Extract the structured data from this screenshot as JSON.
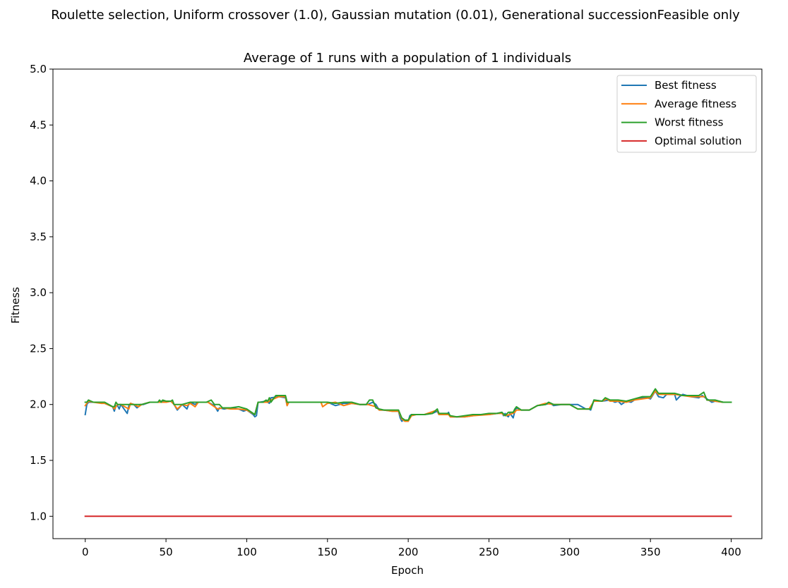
{
  "figure": {
    "suptitle": "Roulette selection, Uniform crossover (1.0), Gaussian mutation (0.01), Generational successionFeasible only",
    "title": "Average of 1 runs with a population of 1 individuals"
  },
  "chart_data": {
    "type": "line",
    "title": "Average of 1 runs with a population of 1 individuals",
    "xlabel": "Epoch",
    "ylabel": "Fitness",
    "xlim": [
      -20,
      419
    ],
    "ylim": [
      0.8,
      5.0
    ],
    "xticks": [
      0,
      50,
      100,
      150,
      200,
      250,
      300,
      350,
      400
    ],
    "xtick_labels": [
      "0",
      "50",
      "100",
      "150",
      "200",
      "250",
      "300",
      "350",
      "400"
    ],
    "yticks": [
      1.0,
      1.5,
      2.0,
      2.5,
      3.0,
      3.5,
      4.0,
      4.5,
      5.0
    ],
    "ytick_labels": [
      "1.0",
      "1.5",
      "2.0",
      "2.5",
      "3.0",
      "3.5",
      "4.0",
      "4.5",
      "5.0"
    ],
    "grid": false,
    "legend_position": "top-right",
    "series": [
      {
        "name": "Best fitness",
        "color": "#1f77b4",
        "x": [
          0,
          1,
          2,
          5,
          10,
          12,
          17,
          18,
          19,
          20,
          21,
          22,
          26,
          27,
          28,
          30,
          32,
          33,
          34,
          36,
          40,
          45,
          47,
          50,
          53,
          55,
          57,
          60,
          63,
          64,
          65,
          68,
          70,
          72,
          76,
          80,
          82,
          83,
          86,
          90,
          95,
          98,
          100,
          103,
          104,
          105,
          106,
          107,
          108,
          112,
          114,
          115,
          120,
          124,
          125,
          126,
          130,
          135,
          140,
          145,
          150,
          155,
          160,
          165,
          170,
          175,
          178,
          180,
          182,
          185,
          190,
          194,
          195,
          196,
          197,
          198,
          200,
          201,
          202,
          205,
          210,
          215,
          218,
          219,
          221,
          224,
          225,
          226,
          230,
          233,
          235,
          240,
          245,
          248,
          250,
          255,
          258,
          259,
          260,
          261,
          262,
          263,
          265,
          266,
          267,
          270,
          275,
          280,
          285,
          288,
          290,
          295,
          300,
          305,
          310,
          312,
          313,
          315,
          320,
          325,
          328,
          330,
          332,
          335,
          338,
          340,
          345,
          348,
          350,
          353,
          355,
          358,
          360,
          365,
          366,
          368,
          370,
          375,
          380,
          382,
          385,
          388,
          390,
          395,
          398,
          400
        ],
        "y": [
          1.91,
          2.0,
          2.02,
          2.02,
          2.02,
          2.01,
          1.98,
          1.94,
          1.99,
          1.99,
          1.96,
          2.0,
          1.92,
          1.99,
          2.01,
          2.0,
          1.97,
          1.98,
          2.0,
          2.0,
          2.02,
          2.02,
          2.03,
          2.02,
          2.03,
          2.0,
          1.95,
          2.0,
          1.96,
          2.0,
          2.02,
          2.0,
          2.02,
          2.02,
          2.02,
          1.99,
          1.94,
          1.97,
          1.96,
          1.97,
          1.96,
          1.94,
          1.95,
          1.92,
          1.91,
          1.89,
          1.9,
          2.02,
          2.02,
          2.03,
          2.01,
          2.06,
          2.07,
          2.06,
          1.99,
          2.02,
          2.02,
          2.02,
          2.02,
          2.02,
          2.02,
          1.99,
          2.01,
          2.01,
          2.0,
          2.0,
          2.02,
          2.0,
          1.95,
          1.95,
          1.94,
          1.94,
          1.88,
          1.85,
          1.86,
          1.85,
          1.85,
          1.9,
          1.91,
          1.91,
          1.91,
          1.92,
          1.94,
          1.91,
          1.91,
          1.91,
          1.93,
          1.89,
          1.89,
          1.89,
          1.89,
          1.9,
          1.91,
          1.91,
          1.91,
          1.92,
          1.93,
          1.9,
          1.92,
          1.9,
          1.89,
          1.92,
          1.88,
          1.94,
          1.97,
          1.95,
          1.95,
          1.99,
          2.0,
          2.01,
          1.99,
          2.0,
          2.0,
          2.0,
          1.96,
          1.96,
          1.95,
          2.04,
          2.03,
          2.04,
          2.02,
          2.03,
          2.0,
          2.03,
          2.02,
          2.04,
          2.06,
          2.06,
          2.05,
          2.12,
          2.07,
          2.06,
          2.09,
          2.09,
          2.04,
          2.07,
          2.09,
          2.07,
          2.06,
          2.08,
          2.05,
          2.02,
          2.03,
          2.02,
          2.02,
          2.02
        ]
      },
      {
        "name": "Average fitness",
        "color": "#ff7f0e",
        "x": [
          0,
          1,
          2,
          5,
          10,
          12,
          17,
          18,
          20,
          22,
          27,
          28,
          30,
          33,
          35,
          40,
          45,
          50,
          53,
          55,
          57,
          60,
          63,
          65,
          68,
          70,
          72,
          76,
          80,
          82,
          85,
          90,
          95,
          100,
          105,
          107,
          108,
          113,
          115,
          120,
          124,
          125,
          126,
          130,
          135,
          146,
          147,
          150,
          155,
          160,
          165,
          170,
          175,
          180,
          182,
          185,
          190,
          194,
          196,
          198,
          200,
          202,
          205,
          210,
          218,
          219,
          221,
          225,
          226,
          230,
          235,
          240,
          250,
          255,
          258,
          260,
          263,
          266,
          267,
          270,
          275,
          280,
          285,
          290,
          295,
          300,
          305,
          310,
          312,
          315,
          320,
          323,
          325,
          330,
          335,
          340,
          345,
          350,
          353,
          355,
          360,
          365,
          370,
          375,
          380,
          384,
          385,
          390,
          395,
          400
        ],
        "y": [
          1.99,
          2.01,
          2.03,
          2.02,
          2.01,
          2.01,
          1.98,
          1.96,
          2.0,
          2.0,
          1.96,
          2.01,
          2.0,
          1.98,
          2.0,
          2.02,
          2.02,
          2.02,
          2.03,
          2.0,
          1.96,
          2.0,
          1.99,
          2.01,
          1.98,
          2.02,
          2.02,
          2.02,
          1.98,
          1.96,
          1.97,
          1.96,
          1.96,
          1.95,
          1.91,
          2.02,
          2.02,
          2.02,
          2.04,
          2.07,
          2.07,
          1.99,
          2.02,
          2.02,
          2.02,
          2.02,
          1.98,
          2.01,
          2.02,
          1.99,
          2.01,
          2.0,
          2.0,
          1.98,
          1.95,
          1.95,
          1.94,
          1.94,
          1.87,
          1.85,
          1.85,
          1.9,
          1.91,
          1.91,
          1.95,
          1.91,
          1.91,
          1.91,
          1.89,
          1.89,
          1.89,
          1.9,
          1.91,
          1.92,
          1.92,
          1.9,
          1.91,
          1.93,
          1.95,
          1.95,
          1.95,
          1.99,
          2.01,
          2.0,
          2.0,
          2.0,
          1.96,
          1.96,
          1.96,
          2.03,
          2.03,
          2.05,
          2.03,
          2.03,
          2.02,
          2.04,
          2.05,
          2.06,
          2.12,
          2.09,
          2.09,
          2.09,
          2.08,
          2.07,
          2.07,
          2.07,
          2.04,
          2.03,
          2.02,
          2.02
        ]
      },
      {
        "name": "Worst fitness",
        "color": "#2ca02c",
        "x": [
          0,
          1,
          2,
          5,
          10,
          12,
          17,
          18,
          19,
          20,
          25,
          30,
          35,
          40,
          45,
          46,
          47,
          48,
          50,
          53,
          54,
          55,
          56,
          60,
          65,
          70,
          75,
          78,
          80,
          83,
          85,
          90,
          95,
          100,
          105,
          107,
          110,
          112,
          113,
          114,
          115,
          118,
          120,
          124,
          125,
          130,
          135,
          140,
          145,
          150,
          155,
          160,
          165,
          170,
          174,
          176,
          178,
          180,
          182,
          185,
          194,
          196,
          198,
          200,
          202,
          205,
          210,
          215,
          218,
          219,
          220,
          225,
          226,
          230,
          235,
          240,
          245,
          250,
          255,
          258,
          260,
          262,
          265,
          266,
          267,
          270,
          275,
          280,
          285,
          287,
          290,
          300,
          305,
          310,
          313,
          315,
          320,
          322,
          325,
          330,
          335,
          340,
          345,
          350,
          353,
          355,
          360,
          365,
          370,
          375,
          380,
          383,
          385,
          390,
          395,
          400
        ],
        "y": [
          2.02,
          2.02,
          2.04,
          2.02,
          2.02,
          2.02,
          1.98,
          1.98,
          2.02,
          2.0,
          2.0,
          2.0,
          2.0,
          2.02,
          2.02,
          2.04,
          2.02,
          2.04,
          2.03,
          2.03,
          2.04,
          2.0,
          2.0,
          2.0,
          2.02,
          2.02,
          2.02,
          2.04,
          2.0,
          2.0,
          1.97,
          1.97,
          1.98,
          1.96,
          1.91,
          2.02,
          2.02,
          2.04,
          2.03,
          2.06,
          2.02,
          2.08,
          2.08,
          2.08,
          2.02,
          2.02,
          2.02,
          2.02,
          2.02,
          2.02,
          2.01,
          2.02,
          2.02,
          2.0,
          2.0,
          2.04,
          2.04,
          1.97,
          1.96,
          1.95,
          1.95,
          1.88,
          1.86,
          1.86,
          1.91,
          1.91,
          1.91,
          1.92,
          1.96,
          1.92,
          1.92,
          1.92,
          1.9,
          1.89,
          1.9,
          1.91,
          1.91,
          1.92,
          1.92,
          1.93,
          1.9,
          1.93,
          1.93,
          1.96,
          1.98,
          1.95,
          1.95,
          1.99,
          2.0,
          2.02,
          2.0,
          2.0,
          1.96,
          1.96,
          1.96,
          2.04,
          2.03,
          2.06,
          2.04,
          2.04,
          2.03,
          2.05,
          2.07,
          2.07,
          2.14,
          2.1,
          2.1,
          2.1,
          2.08,
          2.08,
          2.08,
          2.11,
          2.04,
          2.04,
          2.02,
          2.02
        ]
      },
      {
        "name": "Optimal solution",
        "color": "#d62728",
        "x": [
          0,
          400
        ],
        "y": [
          1.0,
          1.0
        ]
      }
    ]
  }
}
